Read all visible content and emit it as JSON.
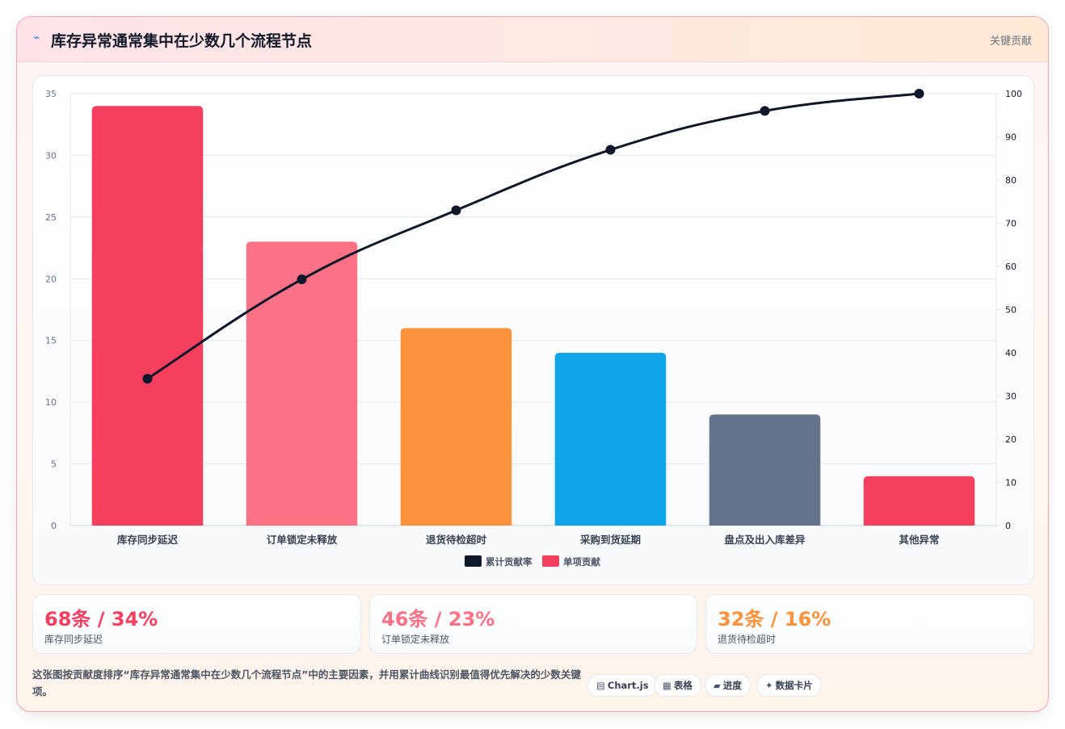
{
  "header": {
    "icon": "lightning-icon",
    "title": "库存异常通常集中在少数几个流程节点",
    "badge": "关键贡献"
  },
  "chart_data": {
    "type": "bar",
    "categories": [
      "库存同步延迟",
      "订单锁定未释放",
      "退货待检超时",
      "采购到货延期",
      "盘点及出入库差异",
      "其他异常"
    ],
    "series": [
      {
        "name": "单项贡献",
        "type": "bar",
        "axis": "left",
        "values": [
          34,
          23,
          16,
          14,
          9,
          4
        ],
        "colors": [
          "#f43f5e",
          "#fb7185",
          "#fb923c",
          "#0ea5e9",
          "#64748b",
          "#f43f5e"
        ]
      },
      {
        "name": "累计贡献率",
        "type": "line",
        "axis": "right",
        "values": [
          34,
          57,
          73,
          87,
          96,
          100
        ],
        "color": "#0f172a"
      }
    ],
    "yLeft": {
      "min": 0,
      "max": 35,
      "ticks": [
        0,
        5,
        10,
        15,
        20,
        25,
        30,
        35
      ]
    },
    "yRight": {
      "min": 0,
      "max": 100,
      "ticks": [
        0,
        10,
        20,
        30,
        40,
        50,
        60,
        70,
        80,
        90,
        100
      ]
    },
    "grid": true,
    "legend_position": "bottom",
    "legend": [
      {
        "label": "累计贡献率",
        "color": "#0f172a"
      },
      {
        "label": "单项贡献",
        "color": "#f43f5e"
      }
    ]
  },
  "stats": [
    {
      "value": "68条 / 34%",
      "label": "库存同步延迟",
      "color": "#f43f5e"
    },
    {
      "value": "46条 / 23%",
      "label": "订单锁定未释放",
      "color": "#fb7185"
    },
    {
      "value": "32条 / 16%",
      "label": "退货待检超时",
      "color": "#fb923c"
    }
  ],
  "description": "这张图按贡献度排序“库存异常通常集中在少数几个流程节点”中的主要因素，并用累计曲线识别最值得优先解决的少数关键项。",
  "chips": [
    {
      "icon": "▤",
      "label": "Chart.js"
    },
    {
      "icon": "▦",
      "label": "表格"
    },
    {
      "icon": "▰",
      "label": "进度"
    },
    {
      "icon": "✦",
      "label": "数据卡片"
    }
  ]
}
